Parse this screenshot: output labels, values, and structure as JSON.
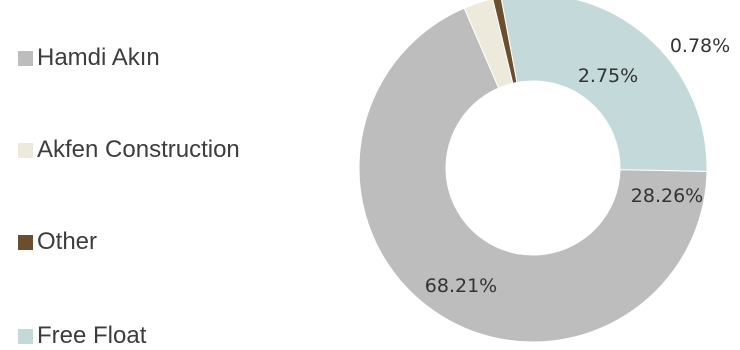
{
  "chart_data": {
    "type": "pie",
    "subtype": "donut",
    "legend_position": "left",
    "categories": [
      "Hamdi Akın",
      "Akfen Construction",
      "Other",
      "Free Float"
    ],
    "values": [
      68.21,
      2.75,
      0.78,
      28.26
    ],
    "labels": [
      "68.21%",
      "2.75%",
      "0.78%",
      "28.26%"
    ],
    "colors": [
      "#bdbdbd",
      "#eeeadb",
      "#6b4e2e",
      "#c4d9d9"
    ]
  }
}
